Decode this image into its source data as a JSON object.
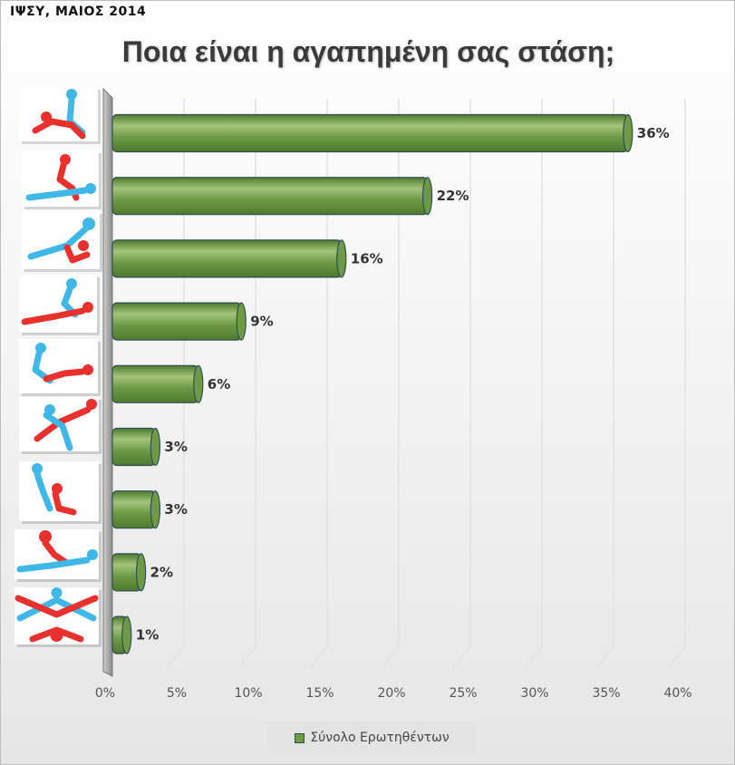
{
  "header": {
    "source_note": "ΙΨΣΥ, ΜΑΙΟΣ 2014"
  },
  "colors": {
    "bar_fill": "#6e9a45",
    "bar_dark": "#4d7a2e",
    "bar_light": "#a3c47a",
    "bar_outline": "#2f4f58",
    "figure_red": "#e8302c",
    "figure_blue": "#3fb8e8"
  },
  "legend": {
    "label": "Σύνολο Ερωτηθέντων"
  },
  "chart_data": {
    "type": "bar",
    "orientation": "horizontal",
    "title": "Ποια είναι η αγαπημένη σας στάση;",
    "categories": [
      "position 1",
      "position 2",
      "position 3",
      "position 4",
      "position 5",
      "position 6",
      "position 7",
      "position 8",
      "position 9"
    ],
    "category_icons": [
      "position-1-icon",
      "position-2-icon",
      "position-3-icon",
      "position-4-icon",
      "position-5-icon",
      "position-6-icon",
      "position-7-icon",
      "position-8-icon",
      "position-9-icon"
    ],
    "series": [
      {
        "name": "Σύνολο Ερωτηθέντων",
        "values": [
          36,
          22,
          16,
          9,
          6,
          3,
          3,
          2,
          1
        ],
        "labels": [
          "36%",
          "22%",
          "16%",
          "9%",
          "6%",
          "3%",
          "3%",
          "2%",
          "1%"
        ]
      }
    ],
    "xlim": [
      0,
      40
    ],
    "xticks": [
      0,
      5,
      10,
      15,
      20,
      25,
      30,
      35,
      40
    ],
    "xtick_labels": [
      "0%",
      "5%",
      "10%",
      "15%",
      "20%",
      "25%",
      "30%",
      "35%",
      "40%"
    ],
    "grid": true,
    "legend_position": "bottom"
  }
}
